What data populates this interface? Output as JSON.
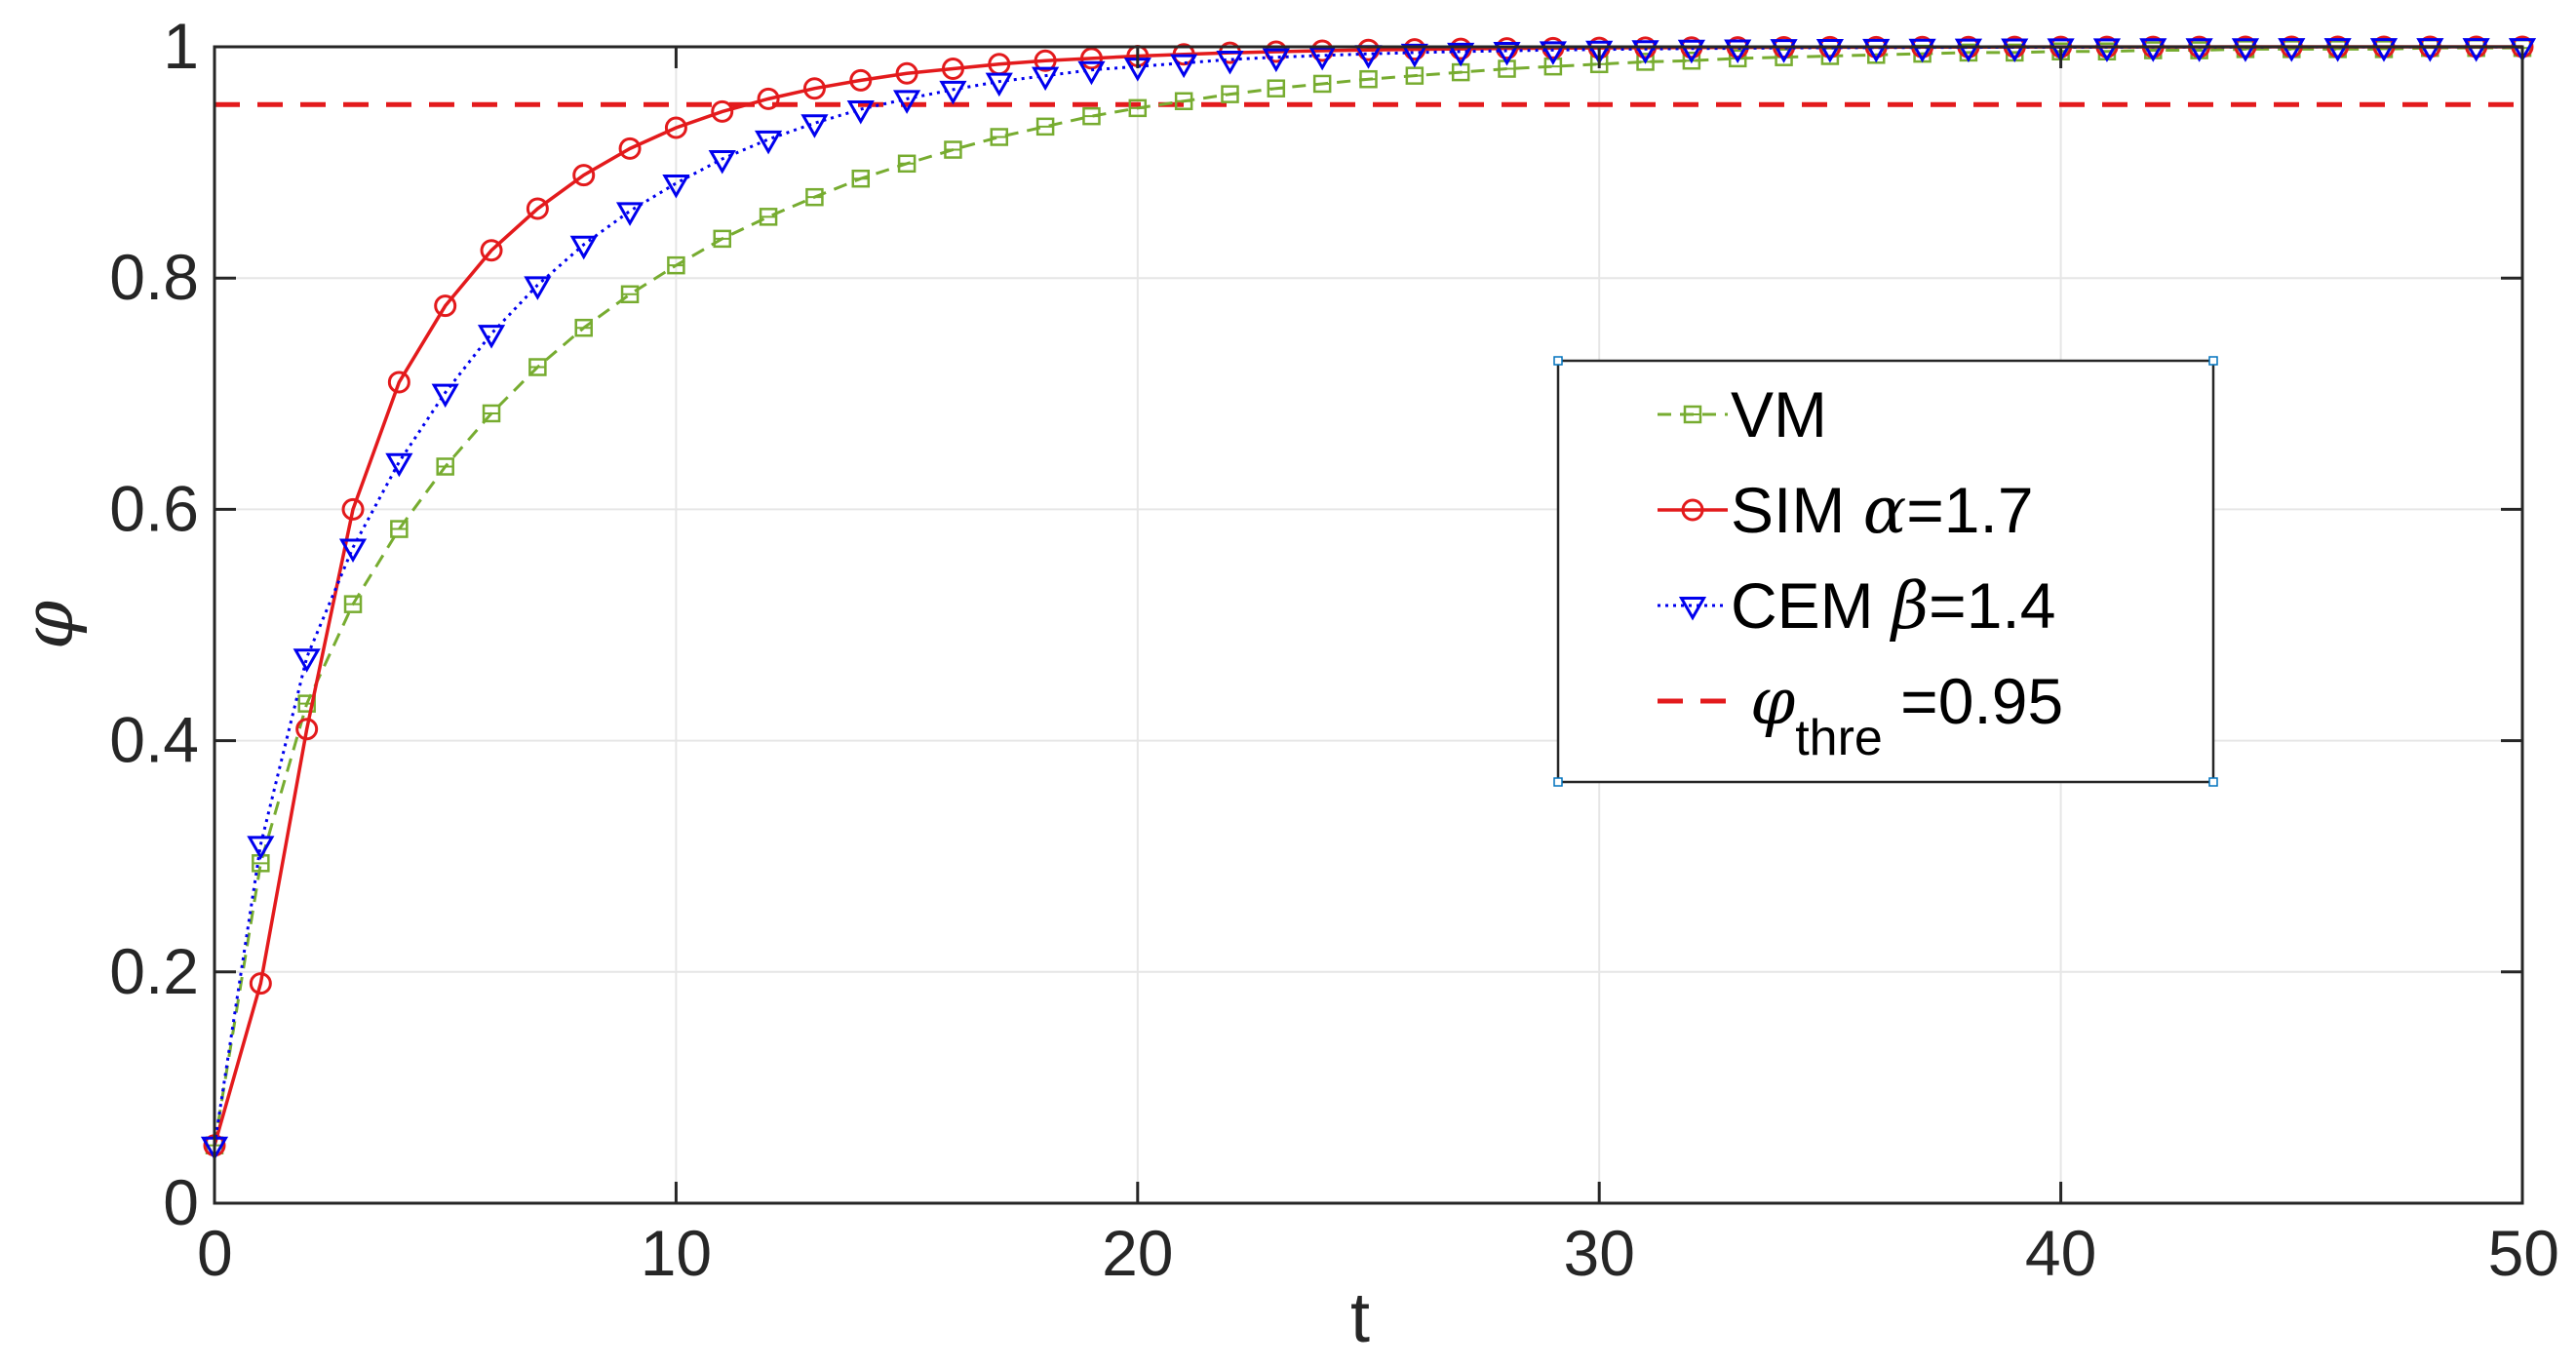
{
  "chart_data": {
    "type": "line",
    "xlabel": "t",
    "ylabel": "φ",
    "xlim": [
      0,
      50
    ],
    "ylim": [
      0,
      1
    ],
    "xticks": [
      0,
      10,
      20,
      30,
      40,
      50
    ],
    "yticks": [
      0,
      0.2,
      0.4,
      0.6,
      0.8,
      1
    ],
    "xtick_labels": [
      "0",
      "10",
      "20",
      "30",
      "40",
      "50"
    ],
    "ytick_labels": [
      "0",
      "0.2",
      "0.4",
      "0.6",
      "0.8",
      "1"
    ],
    "grid": true,
    "legend_position": "center-right",
    "x": [
      0,
      1,
      2,
      3,
      4,
      5,
      6,
      7,
      8,
      9,
      10,
      11,
      12,
      13,
      14,
      15,
      16,
      17,
      18,
      19,
      20,
      21,
      22,
      23,
      24,
      25,
      26,
      27,
      28,
      29,
      30,
      31,
      32,
      33,
      34,
      35,
      36,
      37,
      38,
      39,
      40,
      41,
      42,
      43,
      44,
      45,
      46,
      47,
      48,
      49,
      50
    ],
    "series": [
      {
        "name": "VM",
        "label_prefix": "VM",
        "label_symbol": "",
        "label_suffix": "",
        "color": "#77ac30",
        "line_style": "dashed",
        "marker": "square",
        "values": [
          0.05,
          0.294,
          0.432,
          0.518,
          0.583,
          0.637,
          0.683,
          0.723,
          0.757,
          0.786,
          0.811,
          0.834,
          0.853,
          0.87,
          0.886,
          0.899,
          0.911,
          0.922,
          0.931,
          0.94,
          0.947,
          0.953,
          0.959,
          0.964,
          0.968,
          0.972,
          0.975,
          0.978,
          0.981,
          0.983,
          0.985,
          0.987,
          0.988,
          0.99,
          0.991,
          0.992,
          0.993,
          0.994,
          0.995,
          0.995,
          0.996,
          0.996,
          0.997,
          0.997,
          0.998,
          0.998,
          0.998,
          0.998,
          0.999,
          0.999,
          0.999
        ]
      },
      {
        "name": "SIM α=1.7",
        "label_prefix": "SIM ",
        "label_symbol": "α",
        "label_suffix": "=1.7",
        "color": "#e31a1c",
        "line_style": "solid",
        "marker": "circle",
        "values": [
          0.05,
          0.19,
          0.41,
          0.6,
          0.71,
          0.776,
          0.824,
          0.86,
          0.889,
          0.912,
          0.93,
          0.944,
          0.955,
          0.964,
          0.971,
          0.977,
          0.981,
          0.985,
          0.988,
          0.99,
          0.992,
          0.9935,
          0.9948,
          0.9958,
          0.9966,
          0.9973,
          0.9978,
          0.9982,
          0.9986,
          0.9988,
          0.9991,
          0.9993,
          0.9994,
          0.9995,
          0.9996,
          0.9997,
          0.9997,
          0.9998,
          0.9998,
          0.9999,
          0.9999,
          0.9999,
          0.9999,
          0.9999,
          1,
          1,
          1,
          1,
          1,
          1,
          1
        ]
      },
      {
        "name": "CEM β=1.4",
        "label_prefix": "CEM ",
        "label_symbol": "β",
        "label_suffix": "=1.4",
        "color": "#0000ee",
        "line_style": "dotted",
        "marker": "triangle-down",
        "values": [
          0.05,
          0.31,
          0.472,
          0.567,
          0.641,
          0.701,
          0.752,
          0.794,
          0.829,
          0.858,
          0.882,
          0.903,
          0.92,
          0.934,
          0.946,
          0.955,
          0.963,
          0.97,
          0.975,
          0.98,
          0.983,
          0.986,
          0.989,
          0.991,
          0.9925,
          0.9939,
          0.995,
          0.9959,
          0.9966,
          0.9972,
          0.9977,
          0.9981,
          0.9985,
          0.9987,
          0.999,
          0.9992,
          0.9993,
          0.9994,
          0.9995,
          0.9996,
          0.9997,
          0.9997,
          0.9998,
          0.9998,
          0.9998,
          0.9999,
          0.9999,
          0.9999,
          0.9999,
          0.9999,
          0.9999
        ]
      }
    ],
    "threshold": {
      "symbol": "φ",
      "subscript": "thre",
      "label_suffix": " =0.95",
      "value": 0.95,
      "color": "#e31a1c",
      "line_style": "dashed"
    }
  }
}
